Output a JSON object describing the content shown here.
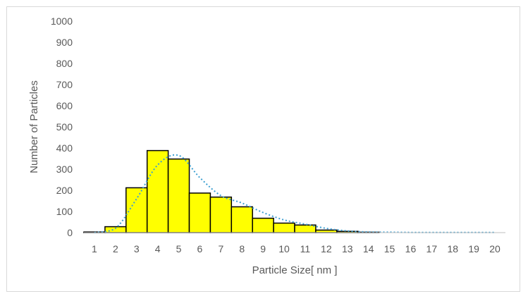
{
  "chart_data": {
    "type": "bar",
    "categories": [
      "1",
      "2",
      "3",
      "4",
      "5",
      "6",
      "7",
      "8",
      "9",
      "10",
      "11",
      "12",
      "13",
      "14",
      "15",
      "16",
      "17",
      "18",
      "19",
      "20"
    ],
    "values": [
      3,
      28,
      212,
      388,
      348,
      187,
      168,
      122,
      68,
      45,
      36,
      12,
      6,
      2,
      0,
      0,
      0,
      0,
      0,
      0
    ],
    "trend": [
      0,
      20,
      160,
      320,
      365,
      260,
      175,
      140,
      95,
      60,
      40,
      20,
      8,
      3,
      2,
      1,
      1,
      1,
      1,
      1
    ],
    "title": "",
    "xlabel": "Particle Size[ nm ]",
    "ylabel": "Number of Particles",
    "ylim": [
      0,
      1000
    ],
    "yticks": [
      0,
      100,
      200,
      300,
      400,
      500,
      600,
      700,
      800,
      900,
      1000
    ],
    "grid": false,
    "legend": "none",
    "colors": {
      "bar_fill": "#ffff00",
      "bar_stroke": "#000000",
      "trend": "#3c9fd1",
      "axis": "#bfbfbf",
      "text": "#595959"
    }
  }
}
